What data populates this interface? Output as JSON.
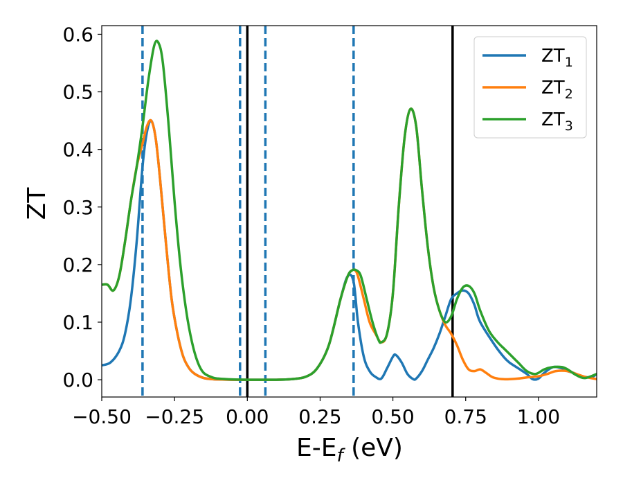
{
  "chart_data": {
    "type": "line",
    "xlabel": "E-E",
    "xlabel_sub": "f",
    "xlabel_unit": " (eV)",
    "ylabel": "ZT",
    "xlim": [
      -0.5,
      1.2
    ],
    "ylim": [
      -0.03,
      0.615
    ],
    "xticks": [
      -0.5,
      -0.25,
      0.0,
      0.25,
      0.5,
      0.75,
      1.0
    ],
    "xtick_labels": [
      "−0.50",
      "−0.25",
      "0.00",
      "0.25",
      "0.50",
      "0.75",
      "1.00"
    ],
    "yticks": [
      0.0,
      0.1,
      0.2,
      0.3,
      0.4,
      0.5,
      0.6
    ],
    "ytick_labels": [
      "0.0",
      "0.1",
      "0.2",
      "0.3",
      "0.4",
      "0.5",
      "0.6"
    ],
    "legend_position": "top-right",
    "grid": false,
    "vlines_solid": [
      0.0,
      0.705
    ],
    "vlines_dashed": [
      -0.36,
      -0.025,
      0.062,
      0.365
    ],
    "series": [
      {
        "name": "ZT",
        "name_sub": "1",
        "color": "#1f77b4",
        "x": [
          -0.5,
          -0.47,
          -0.44,
          -0.42,
          -0.4,
          -0.38,
          -0.36,
          -0.345,
          -0.33,
          -0.315,
          -0.3,
          -0.28,
          -0.26,
          -0.24,
          -0.22,
          -0.2,
          -0.18,
          -0.15,
          -0.12,
          -0.1,
          -0.05,
          0.0,
          0.05,
          0.1,
          0.15,
          0.2,
          0.24,
          0.28,
          0.32,
          0.345,
          0.365,
          0.38,
          0.4,
          0.42,
          0.44,
          0.46,
          0.48,
          0.5,
          0.51,
          0.53,
          0.55,
          0.57,
          0.58,
          0.6,
          0.62,
          0.64,
          0.66,
          0.68,
          0.7,
          0.72,
          0.74,
          0.76,
          0.78,
          0.8,
          0.85,
          0.88,
          0.9,
          0.93,
          0.96,
          0.98,
          1.0,
          1.02,
          1.05,
          1.08,
          1.1,
          1.12,
          1.15,
          1.18,
          1.2
        ],
        "y": [
          0.025,
          0.03,
          0.05,
          0.08,
          0.14,
          0.24,
          0.37,
          0.43,
          0.45,
          0.42,
          0.35,
          0.24,
          0.14,
          0.08,
          0.04,
          0.02,
          0.01,
          0.003,
          0.001,
          0.0005,
          0.0,
          0.0,
          0.0,
          0.0,
          0.001,
          0.005,
          0.02,
          0.06,
          0.14,
          0.18,
          0.17,
          0.1,
          0.04,
          0.015,
          0.005,
          0.002,
          0.02,
          0.04,
          0.043,
          0.03,
          0.01,
          0.001,
          0.002,
          0.015,
          0.035,
          0.055,
          0.08,
          0.11,
          0.14,
          0.15,
          0.155,
          0.15,
          0.13,
          0.1,
          0.06,
          0.04,
          0.03,
          0.02,
          0.01,
          0.001,
          0.002,
          0.012,
          0.022,
          0.02,
          0.015,
          0.012,
          0.006,
          0.004,
          0.01
        ]
      },
      {
        "name": "ZT",
        "name_sub": "2",
        "color": "#ff7f0e",
        "x": [
          -0.5,
          -0.48,
          -0.46,
          -0.44,
          -0.42,
          -0.4,
          -0.38,
          -0.36,
          -0.345,
          -0.33,
          -0.315,
          -0.3,
          -0.28,
          -0.26,
          -0.24,
          -0.22,
          -0.2,
          -0.18,
          -0.15,
          -0.12,
          -0.1,
          -0.05,
          0.0,
          0.05,
          0.1,
          0.15,
          0.2,
          0.24,
          0.28,
          0.32,
          0.345,
          0.36,
          0.37,
          0.38,
          0.4,
          0.42,
          0.44,
          0.46,
          0.48,
          0.5,
          0.52,
          0.54,
          0.56,
          0.58,
          0.6,
          0.62,
          0.64,
          0.66,
          0.68,
          0.7,
          0.72,
          0.74,
          0.76,
          0.78,
          0.8,
          0.82,
          0.84,
          0.86,
          0.88,
          0.9,
          0.93,
          0.96,
          1.0,
          1.03,
          1.06,
          1.1,
          1.13,
          1.16,
          1.2
        ],
        "y": [
          0.165,
          0.165,
          0.155,
          0.18,
          0.24,
          0.31,
          0.37,
          0.41,
          0.44,
          0.45,
          0.42,
          0.35,
          0.24,
          0.14,
          0.08,
          0.04,
          0.02,
          0.01,
          0.003,
          0.001,
          0.0005,
          0.0,
          0.0,
          0.0,
          0.0,
          0.001,
          0.005,
          0.02,
          0.06,
          0.14,
          0.18,
          0.19,
          0.19,
          0.18,
          0.14,
          0.1,
          0.08,
          0.065,
          0.08,
          0.15,
          0.3,
          0.42,
          0.47,
          0.44,
          0.33,
          0.23,
          0.16,
          0.12,
          0.095,
          0.08,
          0.06,
          0.035,
          0.018,
          0.015,
          0.018,
          0.012,
          0.005,
          0.002,
          0.001,
          0.001,
          0.002,
          0.004,
          0.006,
          0.01,
          0.015,
          0.015,
          0.01,
          0.005,
          0.001
        ]
      },
      {
        "name": "ZT",
        "name_sub": "3",
        "color": "#2ca02c",
        "x": [
          -0.5,
          -0.48,
          -0.46,
          -0.44,
          -0.42,
          -0.4,
          -0.38,
          -0.36,
          -0.34,
          -0.32,
          -0.305,
          -0.29,
          -0.27,
          -0.25,
          -0.23,
          -0.21,
          -0.19,
          -0.17,
          -0.15,
          -0.12,
          -0.1,
          -0.05,
          0.0,
          0.05,
          0.1,
          0.15,
          0.2,
          0.24,
          0.28,
          0.32,
          0.345,
          0.36,
          0.375,
          0.39,
          0.41,
          0.43,
          0.45,
          0.46,
          0.48,
          0.5,
          0.52,
          0.54,
          0.56,
          0.58,
          0.6,
          0.62,
          0.64,
          0.66,
          0.68,
          0.7,
          0.72,
          0.74,
          0.76,
          0.78,
          0.8,
          0.83,
          0.86,
          0.88,
          0.9,
          0.93,
          0.96,
          0.99,
          1.02,
          1.05,
          1.08,
          1.1,
          1.13,
          1.16,
          1.2
        ],
        "y": [
          0.165,
          0.165,
          0.155,
          0.18,
          0.24,
          0.31,
          0.37,
          0.44,
          0.52,
          0.58,
          0.585,
          0.55,
          0.44,
          0.31,
          0.2,
          0.12,
          0.065,
          0.03,
          0.012,
          0.004,
          0.002,
          0.0005,
          0.0,
          0.0,
          0.0,
          0.001,
          0.005,
          0.02,
          0.06,
          0.14,
          0.18,
          0.19,
          0.19,
          0.18,
          0.14,
          0.1,
          0.07,
          0.065,
          0.08,
          0.15,
          0.3,
          0.42,
          0.47,
          0.44,
          0.33,
          0.23,
          0.16,
          0.12,
          0.1,
          0.11,
          0.14,
          0.16,
          0.163,
          0.15,
          0.12,
          0.085,
          0.065,
          0.055,
          0.045,
          0.03,
          0.015,
          0.01,
          0.018,
          0.022,
          0.022,
          0.018,
          0.008,
          0.003,
          0.01
        ]
      }
    ]
  }
}
